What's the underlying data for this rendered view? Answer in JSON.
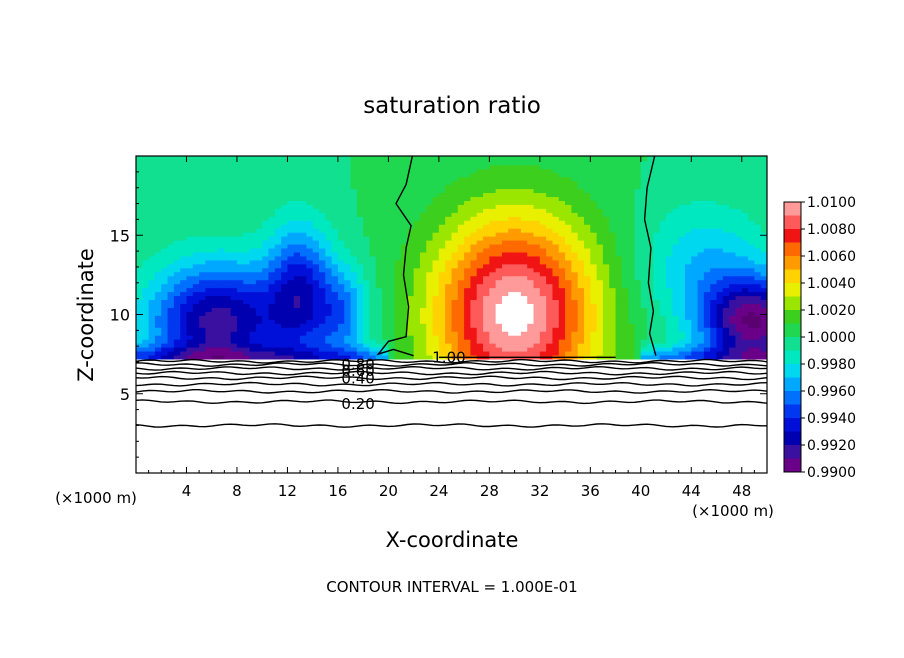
{
  "chart_data": {
    "type": "heatmap",
    "title": "saturation ratio",
    "xlabel": "X-coordinate",
    "ylabel": "Z-coordinate",
    "x_unit_left": "(×1000 m)",
    "x_unit_right": "(×1000 m)",
    "footnote": "CONTOUR INTERVAL = 1.000E-01",
    "xlim": [
      0,
      50
    ],
    "ylim": [
      0,
      20
    ],
    "x_ticks": [
      {
        "value": 4,
        "label": "4"
      },
      {
        "value": 8,
        "label": "8"
      },
      {
        "value": 12,
        "label": "12"
      },
      {
        "value": 16,
        "label": "16"
      },
      {
        "value": 20,
        "label": "20"
      },
      {
        "value": 24,
        "label": "24"
      },
      {
        "value": 28,
        "label": "28"
      },
      {
        "value": 32,
        "label": "32"
      },
      {
        "value": 36,
        "label": "36"
      },
      {
        "value": 40,
        "label": "40"
      },
      {
        "value": 44,
        "label": "44"
      },
      {
        "value": 48,
        "label": "48"
      }
    ],
    "y_ticks": [
      {
        "value": 5,
        "label": "5"
      },
      {
        "value": 10,
        "label": "10"
      },
      {
        "value": 15,
        "label": "15"
      }
    ],
    "colorbar": {
      "levels": [
        "1.0100",
        "1.0080",
        "1.0060",
        "1.0040",
        "1.0020",
        "1.0000",
        "0.9980",
        "0.9960",
        "0.9940",
        "0.9920",
        "0.9900"
      ],
      "colors": [
        "#ff9a9a",
        "#ff5a5a",
        "#f01414",
        "#ff6a00",
        "#ff9a00",
        "#ffd200",
        "#e8f000",
        "#9ae600",
        "#3ccf1e",
        "#20d850",
        "#10e090",
        "#00e8c0",
        "#00d8f0",
        "#00a8ff",
        "#0070ff",
        "#0038f0",
        "#0010d8",
        "#0000b0",
        "#3a10a0",
        "#6a0088"
      ]
    },
    "contours": [
      {
        "value": 1.0,
        "label": "1.00"
      },
      {
        "value": 0.8,
        "label": "0.80"
      },
      {
        "value": 0.6,
        "label": "0.60"
      },
      {
        "value": 0.4,
        "label": "0.40"
      },
      {
        "value": 0.2,
        "label": "0.20"
      }
    ],
    "field_summary": {
      "surface_height_z": 7.2,
      "supersaturated_core": {
        "x_range": [
          23,
          41
        ],
        "z_range": [
          7.2,
          19.5
        ],
        "peak_center": [
          30,
          10
        ]
      },
      "subsaturated_plumes": [
        {
          "x_center": 7,
          "width": 10
        },
        {
          "x_center": 48,
          "width": 6
        }
      ]
    }
  }
}
